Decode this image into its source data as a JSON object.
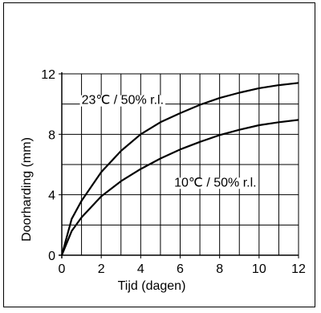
{
  "chart_data": {
    "type": "line",
    "xlabel": "Tijd (dagen)",
    "ylabel": "Doorharding (mm)",
    "xlim": [
      0,
      12
    ],
    "ylim": [
      0,
      12
    ],
    "x_ticks": [
      "0",
      "2",
      "4",
      "6",
      "8",
      "10",
      "12"
    ],
    "y_ticks": [
      "0",
      "4",
      "8",
      "12"
    ],
    "grid": true,
    "series": [
      {
        "name": "23℃ / 50% r.l.",
        "x": [
          0,
          0.5,
          1,
          2,
          3,
          4,
          5,
          6,
          7,
          8,
          9,
          10,
          11,
          12
        ],
        "y": [
          0,
          2.4,
          3.6,
          5.5,
          6.9,
          8.0,
          8.8,
          9.4,
          9.95,
          10.4,
          10.75,
          11.05,
          11.25,
          11.4
        ]
      },
      {
        "name": "10℃ / 50% r.l.",
        "x": [
          0,
          0.5,
          1,
          2,
          3,
          4,
          5,
          6,
          7,
          8,
          9,
          10,
          11,
          12
        ],
        "y": [
          0,
          1.6,
          2.5,
          3.9,
          4.9,
          5.7,
          6.4,
          7.0,
          7.5,
          7.95,
          8.3,
          8.6,
          8.8,
          8.95
        ]
      }
    ]
  }
}
